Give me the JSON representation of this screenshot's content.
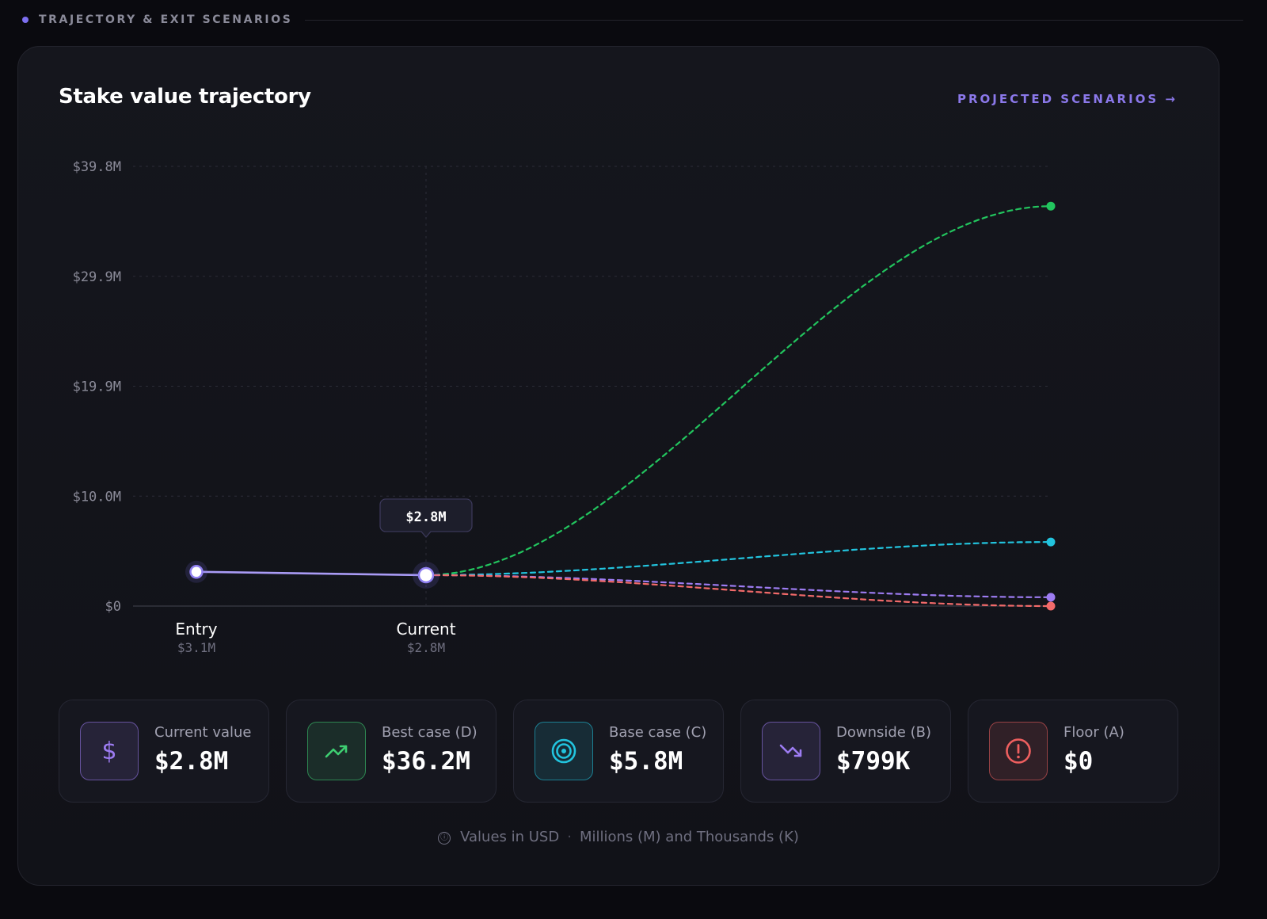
{
  "section": {
    "label": "TRAJECTORY & EXIT SCENARIOS"
  },
  "card": {
    "title": "Stake value trajectory",
    "link_label": "PROJECTED SCENARIOS →"
  },
  "chart_data": {
    "type": "line",
    "title": "Stake value trajectory",
    "y_ticks": [
      "$0",
      "$10.0M",
      "$19.9M",
      "$29.9M",
      "$39.8M"
    ],
    "ylim": [
      0,
      39.8
    ],
    "y_unit": "$M",
    "grid": true,
    "x_points": [
      {
        "label": "Entry",
        "value_label": "$3.1M"
      },
      {
        "label": "Current",
        "value_label": "$2.8M"
      }
    ],
    "actual": {
      "points": [
        {
          "x": "Entry",
          "y": 3.1
        },
        {
          "x": "Current",
          "y": 2.8
        }
      ],
      "color": "#a99bf5"
    },
    "tooltip": "$2.8M",
    "scenarios": [
      {
        "start": 2.8,
        "end": 36.2,
        "color": "#22c55e"
      },
      {
        "start": 2.8,
        "end": 5.8,
        "color": "#22c4de"
      },
      {
        "start": 2.8,
        "end": 0.799,
        "color": "#9d7cf2"
      },
      {
        "start": 2.8,
        "end": 0,
        "color": "#f26a6a"
      }
    ]
  },
  "stats": [
    {
      "label": "Current value",
      "value": "$2.8M",
      "icon": "dollar-icon",
      "color": "#9d7cf2"
    },
    {
      "label": "Best case (D)",
      "value": "$36.2M",
      "icon": "trending-up-icon",
      "color": "#3ecf72"
    },
    {
      "label": "Base case (C)",
      "value": "$5.8M",
      "icon": "target-icon",
      "color": "#22c4de"
    },
    {
      "label": "Downside (B)",
      "value": "$799K",
      "icon": "trending-down-icon",
      "color": "#9d7cf2"
    },
    {
      "label": "Floor (A)",
      "value": "$0",
      "icon": "alert-circle-icon",
      "color": "#ef5f5f"
    }
  ],
  "footnote": {
    "info_icon": "ⓘ",
    "part1": "Values in USD",
    "separator": "·",
    "part2": "Millions (M) and Thousands (K)"
  }
}
